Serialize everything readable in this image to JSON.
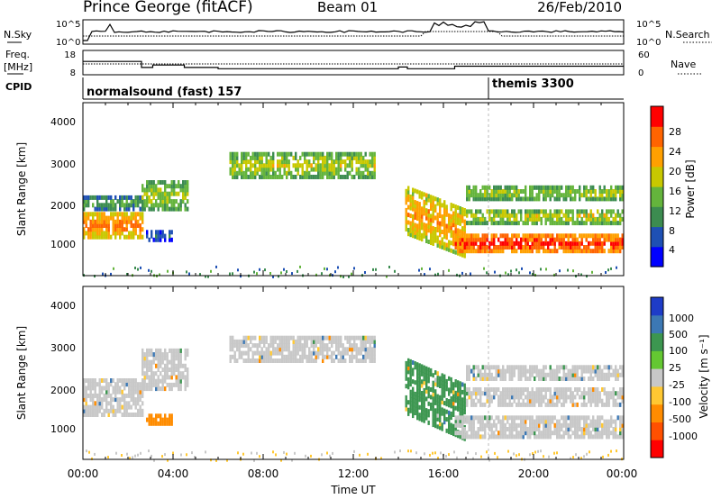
{
  "header": {
    "station": "Prince George (fitACF)",
    "beam": "Beam 01",
    "date": "26/Feb/2010"
  },
  "noise_panel": {
    "left_label": "N.Sky",
    "right_label": "N.Search",
    "left_ticks": [
      "10^5",
      "10^0"
    ],
    "right_ticks": [
      "10^5",
      "10^0"
    ]
  },
  "freq_panel": {
    "left_label_top": "Freq.",
    "left_label_bottom": "[MHz]",
    "right_label": "Nave",
    "left_ticks": [
      "18",
      "8"
    ],
    "right_ticks": [
      "60",
      "0"
    ]
  },
  "cpid": {
    "label": "CPID",
    "segments": [
      {
        "name": "normalsound (fast) 157",
        "start_hour": 0
      },
      {
        "name": "themis 3300",
        "start_hour": 18
      }
    ]
  },
  "power_panel": {
    "ylabel": "Slant Range [km]",
    "yticks": [
      "4000",
      "3000",
      "2000",
      "1000"
    ],
    "colorbar_label": "Power [dB]",
    "colorbar_ticks": [
      "28",
      "24",
      "20",
      "16",
      "12",
      "8",
      "4"
    ],
    "colors": [
      "#0000ff",
      "#1e50b4",
      "#3c8c50",
      "#64b43c",
      "#c8c800",
      "#ffa000",
      "#ff6400",
      "#ff0000"
    ]
  },
  "velocity_panel": {
    "ylabel": "Slant Range [km]",
    "yticks": [
      "4000",
      "3000",
      "2000",
      "1000"
    ],
    "colorbar_label": "Velocity [m s⁻¹]",
    "colorbar_ticks": [
      "1000",
      "500",
      "100",
      "25",
      "-25",
      "-100",
      "-500",
      "-1000"
    ],
    "colors": [
      "#1e3cc8",
      "#3c78b4",
      "#3c9650",
      "#64c832",
      "#c8c8c8",
      "#ffc832",
      "#ff8c00",
      "#ff5000",
      "#ff0000"
    ]
  },
  "time_axis": {
    "xlabel": "Time UT",
    "ticks": [
      "00:00",
      "04:00",
      "08:00",
      "12:00",
      "16:00",
      "20:00",
      "00:00"
    ]
  },
  "chart_data": [
    {
      "type": "heatmap",
      "title": "Power",
      "x_unit": "hours UT",
      "y_unit": "km",
      "xlim": [
        0,
        24
      ],
      "ylim": [
        180,
        4500
      ],
      "echo_regions": [
        {
          "x0": 0.0,
          "x1": 2.7,
          "y_center": 1500,
          "y_halfwidth": 300,
          "power": 22
        },
        {
          "x0": 0.0,
          "x1": 2.7,
          "y_center": 2050,
          "y_halfwidth": 150,
          "power": 10
        },
        {
          "x0": 2.6,
          "x1": 4.6,
          "y_center": 2250,
          "y_halfwidth": 350,
          "power": 14
        },
        {
          "x0": 2.8,
          "x1": 4.0,
          "y_center": 1250,
          "y_halfwidth": 120,
          "power": 6
        },
        {
          "x0": 6.5,
          "x1": 12.9,
          "y_center": 3000,
          "y_halfwidth": 300,
          "power": 15
        },
        {
          "x0": 14.3,
          "x1": 17.0,
          "y_center": 1900,
          "y_halfwidth": 600,
          "power": 20
        },
        {
          "x0": 16.5,
          "x1": 24.0,
          "y_center": 1050,
          "y_halfwidth": 200,
          "power": 26
        },
        {
          "x0": 17.0,
          "x1": 24.0,
          "y_center": 1700,
          "y_halfwidth": 150,
          "power": 16
        },
        {
          "x0": 17.0,
          "x1": 24.0,
          "y_center": 2300,
          "y_halfwidth": 150,
          "power": 14
        }
      ]
    },
    {
      "type": "heatmap",
      "title": "Velocity",
      "x_unit": "hours UT",
      "y_unit": "km",
      "xlim": [
        0,
        24
      ],
      "ylim": [
        180,
        4500
      ],
      "echo_regions": [
        {
          "x0": 0.0,
          "x1": 2.7,
          "y_center": 1800,
          "y_halfwidth": 450,
          "velocity": 0
        },
        {
          "x0": 2.6,
          "x1": 4.6,
          "y_center": 2500,
          "y_halfwidth": 500,
          "velocity": 0
        },
        {
          "x0": 2.8,
          "x1": 4.0,
          "y_center": 1250,
          "y_halfwidth": 120,
          "velocity": -200
        },
        {
          "x0": 6.5,
          "x1": 12.9,
          "y_center": 3000,
          "y_halfwidth": 300,
          "velocity": 0
        },
        {
          "x0": 14.3,
          "x1": 17.0,
          "y_center": 2100,
          "y_halfwidth": 700,
          "velocity": 60
        },
        {
          "x0": 16.5,
          "x1": 24.0,
          "y_center": 1050,
          "y_halfwidth": 250,
          "velocity": 0
        },
        {
          "x0": 17.0,
          "x1": 24.0,
          "y_center": 1800,
          "y_halfwidth": 200,
          "velocity": 0
        },
        {
          "x0": 17.0,
          "x1": 24.0,
          "y_center": 2400,
          "y_halfwidth": 150,
          "velocity": 0
        }
      ]
    },
    {
      "type": "line",
      "title": "Frequency",
      "x_unit": "hours UT",
      "y_unit": "MHz",
      "ylim": [
        8,
        18
      ],
      "x": [
        0,
        2.6,
        2.6,
        3.1,
        3.1,
        4.5,
        4.5,
        6.0,
        6.0,
        14.0,
        14.0,
        14.4,
        14.4,
        16.5,
        16.5,
        24
      ],
      "y": [
        13.5,
        13.5,
        11.0,
        11.0,
        12.0,
        12.0,
        11.0,
        11.0,
        10.5,
        10.5,
        11.2,
        11.2,
        10.5,
        10.5,
        11.5,
        11.5
      ]
    }
  ]
}
